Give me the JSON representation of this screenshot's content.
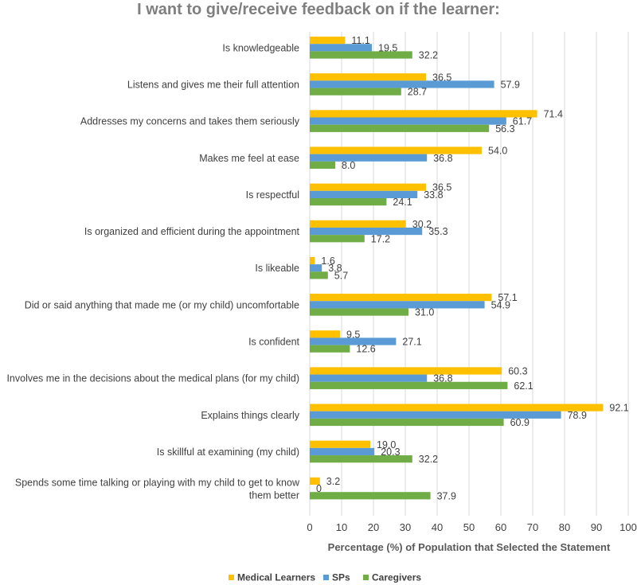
{
  "chart_data": {
    "type": "bar",
    "orientation": "horizontal",
    "title": "I want to give/receive feedback on if the learner:",
    "xlabel": "Percentage (%) of Population that Selected the Statement",
    "ylabel": "",
    "xlim": [
      0,
      100
    ],
    "x_ticks": [
      "0",
      "10",
      "20",
      "30",
      "40",
      "50",
      "60",
      "70",
      "80",
      "90",
      "100"
    ],
    "grid": true,
    "legend_position": "bottom",
    "categories": [
      [
        "Is knowledgeable"
      ],
      [
        "Listens and gives me their full attention"
      ],
      [
        "Addresses my concerns and takes them seriously"
      ],
      [
        "Makes me feel at ease"
      ],
      [
        "Is respectful"
      ],
      [
        "Is organized and efficient during the appointment"
      ],
      [
        "Is likeable"
      ],
      [
        "Did or said anything that made me (or my child) uncomfortable"
      ],
      [
        "Is confident"
      ],
      [
        "Involves me in the decisions about the medical plans (for my child)"
      ],
      [
        "Explains things clearly"
      ],
      [
        "Is skillful at examining (my child)"
      ],
      [
        "Spends some time talking or playing with my child to get to know",
        "them better"
      ]
    ],
    "series": [
      {
        "name": "Medical Learners",
        "color": "#ffc000",
        "values": [
          11.1,
          36.5,
          71.4,
          54.0,
          36.5,
          30.2,
          1.6,
          57.1,
          9.5,
          60.3,
          92.1,
          19.0,
          3.2
        ],
        "labels": [
          "11.1",
          "36.5",
          "71.4",
          "54.0",
          "36.5",
          "30.2",
          "1.6",
          "57.1",
          "9.5",
          "60.3",
          "92.1",
          "19.0",
          "3.2"
        ]
      },
      {
        "name": "SPs",
        "color": "#5b9bd5",
        "values": [
          19.5,
          57.9,
          61.7,
          36.8,
          33.8,
          35.3,
          3.8,
          54.9,
          27.1,
          36.8,
          78.9,
          20.3,
          0
        ],
        "labels": [
          "19.5",
          "57.9",
          "61.7",
          "36.8",
          "33.8",
          "35.3",
          "3.8",
          "54.9",
          "27.1",
          "36.8",
          "78.9",
          "20.3",
          "0"
        ]
      },
      {
        "name": "Caregivers",
        "color": "#70ad47",
        "values": [
          32.2,
          28.7,
          56.3,
          8.0,
          24.1,
          17.2,
          5.7,
          31.0,
          12.6,
          62.1,
          60.9,
          32.2,
          37.9
        ],
        "labels": [
          "32.2",
          "28.7",
          "56.3",
          "8.0",
          "24.1",
          "17.2",
          "5.7",
          "31.0",
          "12.6",
          "62.1",
          "60.9",
          "32.2",
          "37.9"
        ]
      }
    ]
  }
}
